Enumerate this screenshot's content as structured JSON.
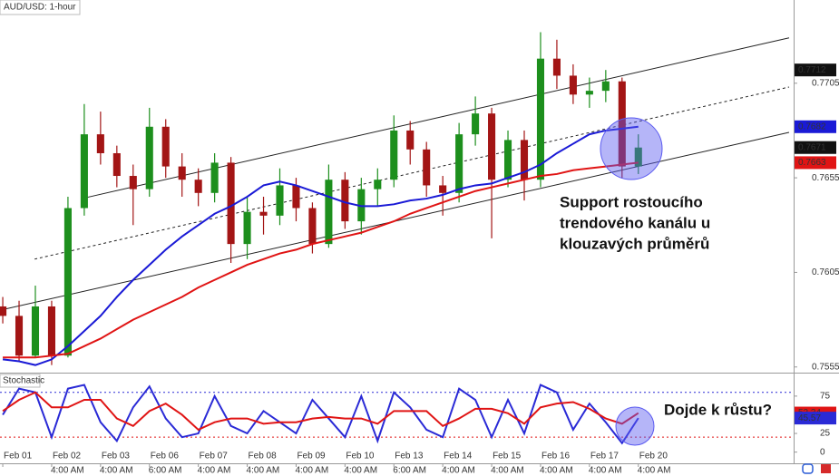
{
  "chart_data": [
    {
      "type": "candlestick",
      "title": "AUD/USD: 1-hour",
      "xlim": [
        -0.17,
        48.53
      ],
      "ylim": [
        0.7552,
        0.7749
      ],
      "yticks": [
        0.7555,
        0.7605,
        0.7655,
        0.7705
      ],
      "xticks": [
        {
          "value": 0,
          "label": "Feb 01"
        },
        {
          "value": 3,
          "label": "Feb 02"
        },
        {
          "value": 6,
          "label": "Feb 03"
        },
        {
          "value": 9,
          "label": "Feb 06"
        },
        {
          "value": 12,
          "label": "Feb 07"
        },
        {
          "value": 15,
          "label": "Feb 08"
        },
        {
          "value": 18,
          "label": "Feb 09"
        },
        {
          "value": 21,
          "label": "Feb 10"
        },
        {
          "value": 24,
          "label": "Feb 13"
        },
        {
          "value": 27,
          "label": "Feb 14"
        },
        {
          "value": 30,
          "label": "Feb 15"
        },
        {
          "value": 33,
          "label": "Feb 16"
        },
        {
          "value": 36,
          "label": "Feb 17"
        },
        {
          "value": 39,
          "label": "Feb 20"
        }
      ],
      "xticks2": [
        {
          "value": 3,
          "label": "4:00 AM"
        },
        {
          "value": 6,
          "label": "4:00 AM"
        },
        {
          "value": 9,
          "label": "6:00 AM"
        },
        {
          "value": 12,
          "label": "4:00 AM"
        },
        {
          "value": 15,
          "label": "4:00 AM"
        },
        {
          "value": 18,
          "label": "4:00 AM"
        },
        {
          "value": 21,
          "label": "4:00 AM"
        },
        {
          "value": 24,
          "label": "6:00 AM"
        },
        {
          "value": 27,
          "label": "4:00 AM"
        },
        {
          "value": 30,
          "label": "4:00 AM"
        },
        {
          "value": 33,
          "label": "4:00 AM"
        },
        {
          "value": 36,
          "label": "4:00 AM"
        },
        {
          "value": 39,
          "label": "4:00 AM"
        }
      ],
      "open": [
        0.7587,
        0.7582,
        0.7561,
        0.7587,
        0.7561,
        0.7639,
        0.7678,
        0.7668,
        0.7656,
        0.7649,
        0.7682,
        0.7661,
        0.7654,
        0.7647,
        0.7663,
        0.762,
        0.7637,
        0.7635,
        0.7651,
        0.7639,
        0.762,
        0.7654,
        0.7632,
        0.7649,
        0.7654,
        0.768,
        0.767,
        0.7651,
        0.7647,
        0.7678,
        0.7689,
        0.7654,
        0.7675,
        0.7654,
        0.7718,
        0.7709,
        0.7699,
        0.7701,
        0.7706,
        0.7661
      ],
      "high": [
        0.7592,
        0.759,
        0.7598,
        0.759,
        0.7645,
        0.7694,
        0.769,
        0.7672,
        0.7662,
        0.7692,
        0.7686,
        0.7668,
        0.766,
        0.7668,
        0.7666,
        0.7645,
        0.7645,
        0.766,
        0.7655,
        0.7642,
        0.7662,
        0.7658,
        0.7655,
        0.766,
        0.7688,
        0.7685,
        0.7674,
        0.7656,
        0.7684,
        0.7698,
        0.7692,
        0.768,
        0.768,
        0.7732,
        0.7728,
        0.7715,
        0.7708,
        0.7712,
        0.7708,
        0.7678
      ],
      "low": [
        0.7578,
        0.7558,
        0.756,
        0.7556,
        0.756,
        0.7635,
        0.7662,
        0.765,
        0.763,
        0.7645,
        0.7655,
        0.7645,
        0.764,
        0.7642,
        0.761,
        0.7612,
        0.7625,
        0.763,
        0.7632,
        0.7615,
        0.7618,
        0.7628,
        0.7625,
        0.764,
        0.765,
        0.7662,
        0.7645,
        0.7635,
        0.7642,
        0.7672,
        0.7623,
        0.765,
        0.7643,
        0.765,
        0.7702,
        0.7694,
        0.7692,
        0.7695,
        0.7655,
        0.7657
      ],
      "close": [
        0.7582,
        0.7561,
        0.7587,
        0.7561,
        0.7639,
        0.7678,
        0.7668,
        0.7656,
        0.7649,
        0.7682,
        0.7661,
        0.7654,
        0.7647,
        0.7663,
        0.762,
        0.7637,
        0.7635,
        0.7651,
        0.7639,
        0.762,
        0.7654,
        0.7632,
        0.7649,
        0.7654,
        0.768,
        0.767,
        0.7651,
        0.7647,
        0.7678,
        0.7689,
        0.7654,
        0.7675,
        0.7654,
        0.7718,
        0.7709,
        0.7699,
        0.7701,
        0.7706,
        0.7661,
        0.7671
      ],
      "up_color": "#1d8f1d",
      "down_color": "#a31515",
      "lines": [
        {
          "color": "#1a1ad6",
          "values": [
            0.7559,
            0.7558,
            0.7556,
            0.7559,
            0.7566,
            0.7574,
            0.7582,
            0.7592,
            0.7601,
            0.7609,
            0.7617,
            0.7624,
            0.763,
            0.7636,
            0.764,
            0.7645,
            0.7651,
            0.7653,
            0.7651,
            0.7648,
            0.7645,
            0.7642,
            0.764,
            0.764,
            0.7641,
            0.7643,
            0.7644,
            0.7646,
            0.7649,
            0.7651,
            0.7652,
            0.7655,
            0.7658,
            0.7662,
            0.7668,
            0.7673,
            0.7678,
            0.768,
            0.7681,
            0.7682
          ]
        },
        {
          "color": "#e01414",
          "values": [
            0.756,
            0.756,
            0.756,
            0.7561,
            0.7562,
            0.7566,
            0.757,
            0.7575,
            0.758,
            0.7584,
            0.7588,
            0.7592,
            0.7597,
            0.7601,
            0.7605,
            0.7609,
            0.7612,
            0.7615,
            0.7617,
            0.762,
            0.7622,
            0.7624,
            0.7626,
            0.7629,
            0.7632,
            0.7636,
            0.7639,
            0.7642,
            0.7645,
            0.7648,
            0.765,
            0.7652,
            0.7654,
            0.7656,
            0.7657,
            0.7659,
            0.766,
            0.7661,
            0.7662,
            0.7663
          ]
        }
      ],
      "channel": [
        {
          "x": [
            4.84,
            48.25
          ],
          "y": [
            0.7644,
            0.7729
          ],
          "dashed": false
        },
        {
          "x": [
            1.95,
            48.25
          ],
          "y": [
            0.7612,
            0.7703
          ],
          "dashed": true
        },
        {
          "x": [
            -0.17,
            48.25
          ],
          "y": [
            0.7585,
            0.7679
          ],
          "dashed": false
        }
      ],
      "level_marker": {
        "value": 0.7712,
        "color": "#111111"
      },
      "close_marker_color": "#111111",
      "annotation": [
        "Support rostoucího",
        "trendového kanálu u",
        "klouzavých průměrů"
      ]
    },
    {
      "type": "line",
      "title": "Stochastic",
      "ylim": [
        -15,
        104
      ],
      "yticks": [
        0,
        25,
        75
      ],
      "levels": [
        {
          "value": 80,
          "color": "#2a2ad6"
        },
        {
          "value": 20,
          "color": "#e01414"
        }
      ],
      "series": [
        {
          "color": "#2a2ad6",
          "values": [
            50,
            85,
            80,
            20,
            85,
            90,
            40,
            15,
            60,
            88,
            45,
            20,
            25,
            75,
            35,
            25,
            55,
            40,
            25,
            70,
            45,
            20,
            75,
            15,
            80,
            60,
            30,
            20,
            85,
            70,
            20,
            70,
            25,
            90,
            80,
            30,
            65,
            40,
            12,
            45.57
          ]
        },
        {
          "color": "#e01414",
          "values": [
            55,
            70,
            80,
            60,
            60,
            70,
            70,
            45,
            35,
            55,
            65,
            50,
            30,
            40,
            45,
            45,
            38,
            40,
            40,
            45,
            47,
            45,
            45,
            38,
            55,
            55,
            55,
            35,
            45,
            58,
            58,
            52,
            38,
            60,
            65,
            67,
            58,
            45,
            38,
            52.34
          ]
        }
      ],
      "annotation": "Dojde k růstu?"
    }
  ]
}
